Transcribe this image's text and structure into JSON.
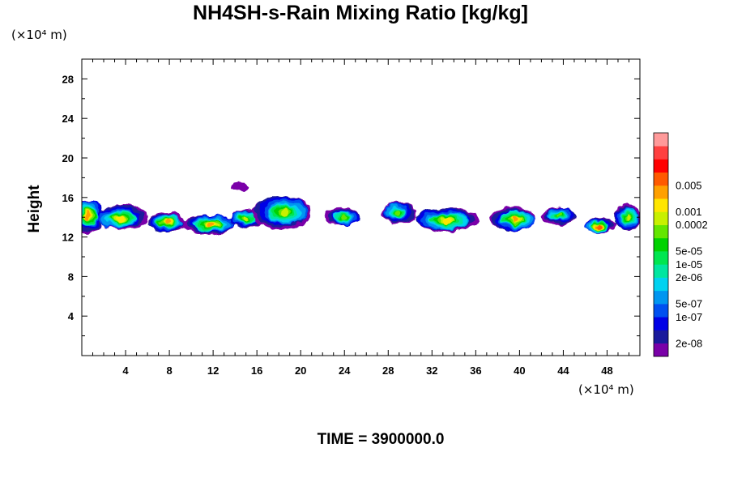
{
  "chart_data": {
    "type": "heatmap",
    "title": "NH4SH-s-Rain Mixing Ratio [kg/kg]",
    "ylabel": "Height",
    "x_unit": "(×10⁴ m)",
    "y_unit": "(×10⁴ m)",
    "time_label": "TIME = 3900000.0",
    "xlim": [
      0,
      51
    ],
    "ylim": [
      0,
      30
    ],
    "x_ticks": [
      4,
      8,
      12,
      16,
      20,
      24,
      28,
      32,
      36,
      40,
      44,
      48
    ],
    "y_ticks": [
      4,
      8,
      12,
      16,
      20,
      24,
      28
    ],
    "colorbar": {
      "colors": [
        "#7a00a8",
        "#1a1a9c",
        "#0000e6",
        "#0050f0",
        "#0096f0",
        "#00d2f0",
        "#00e6a0",
        "#00e650",
        "#00d200",
        "#64e600",
        "#c8f000",
        "#ffe600",
        "#ffa000",
        "#ff5a00",
        "#ff0000",
        "#ff4040",
        "#ff9a9a"
      ],
      "labels": [
        {
          "band": 1,
          "text": "2e-08"
        },
        {
          "band": 3,
          "text": "1e-07"
        },
        {
          "band": 4,
          "text": "5e-07"
        },
        {
          "band": 6,
          "text": "2e-06"
        },
        {
          "band": 7,
          "text": "1e-05"
        },
        {
          "band": 8,
          "text": "5e-05"
        },
        {
          "band": 10,
          "text": "0.0002"
        },
        {
          "band": 11,
          "text": "0.001"
        },
        {
          "band": 13,
          "text": "0.005"
        }
      ]
    },
    "clouds": [
      {
        "x": 0.6,
        "y": 14.2,
        "rx": 1.4,
        "ry": 1.7,
        "level": 12
      },
      {
        "x": 3.5,
        "y": 13.9,
        "rx": 2.3,
        "ry": 1.3,
        "level": 11
      },
      {
        "x": 7.8,
        "y": 13.5,
        "rx": 1.7,
        "ry": 1.0,
        "level": 12
      },
      {
        "x": 11.8,
        "y": 13.3,
        "rx": 2.4,
        "ry": 1.0,
        "level": 12
      },
      {
        "x": 14.4,
        "y": 17.1,
        "rx": 0.9,
        "ry": 0.5,
        "level": 0
      },
      {
        "x": 15.0,
        "y": 13.9,
        "rx": 1.6,
        "ry": 0.9,
        "level": 10
      },
      {
        "x": 18.5,
        "y": 14.5,
        "rx": 2.7,
        "ry": 1.7,
        "level": 10
      },
      {
        "x": 23.9,
        "y": 14.0,
        "rx": 1.6,
        "ry": 0.9,
        "level": 9
      },
      {
        "x": 28.8,
        "y": 14.5,
        "rx": 1.6,
        "ry": 1.1,
        "level": 9
      },
      {
        "x": 33.3,
        "y": 13.7,
        "rx": 2.9,
        "ry": 1.2,
        "level": 11
      },
      {
        "x": 39.6,
        "y": 13.8,
        "rx": 2.1,
        "ry": 1.2,
        "level": 12
      },
      {
        "x": 43.6,
        "y": 14.2,
        "rx": 1.6,
        "ry": 0.9,
        "level": 9
      },
      {
        "x": 47.2,
        "y": 13.1,
        "rx": 1.4,
        "ry": 0.8,
        "level": 13
      },
      {
        "x": 49.9,
        "y": 14.0,
        "rx": 1.3,
        "ry": 1.3,
        "level": 10
      }
    ]
  }
}
